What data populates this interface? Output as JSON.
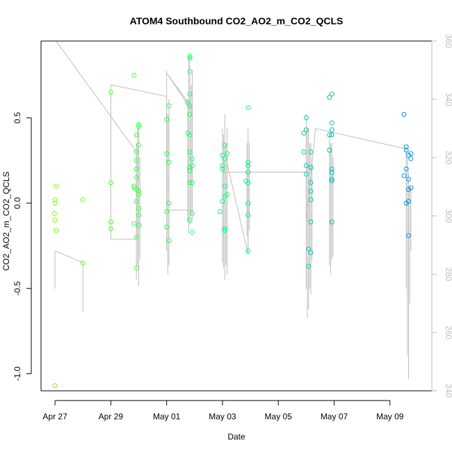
{
  "chart_data": {
    "type": "scatter",
    "title": "ATOM4 Southbound CO2_AO2_m_CO2_QCLS",
    "xlabel": "Date",
    "ylabel": "CO2_AO2_m_CO2_QCLS",
    "xlim": [
      "2018-04-26T12:00",
      "2018-05-10T12:00"
    ],
    "ylim": [
      -1.1,
      0.95
    ],
    "y2lim": [
      240,
      360
    ],
    "x_ticks": [
      {
        "date": "2018-04-27",
        "label": "Apr 27"
      },
      {
        "date": "2018-04-29",
        "label": "Apr 29"
      },
      {
        "date": "2018-05-01",
        "label": "May 01"
      },
      {
        "date": "2018-05-03",
        "label": "May 03"
      },
      {
        "date": "2018-05-05",
        "label": "May 05"
      },
      {
        "date": "2018-05-07",
        "label": "May 07"
      },
      {
        "date": "2018-05-09",
        "label": "May 09"
      }
    ],
    "y_ticks": [
      {
        "value": -1.0,
        "label": "-1.0"
      },
      {
        "value": -0.5,
        "label": "-0.5"
      },
      {
        "value": 0.0,
        "label": "0.0"
      },
      {
        "value": 0.5,
        "label": "0.5"
      }
    ],
    "y2_ticks": [
      {
        "value": 240,
        "label": "240"
      },
      {
        "value": 260,
        "label": "260"
      },
      {
        "value": 280,
        "label": "280"
      },
      {
        "value": 300,
        "label": "300"
      },
      {
        "value": 320,
        "label": "320"
      },
      {
        "value": 340,
        "label": "340"
      },
      {
        "value": 360,
        "label": "360"
      }
    ],
    "grid": false,
    "legend": "none",
    "point_color_start": "#80ff00",
    "point_color_mid": "#00ff80",
    "point_color_end": "#0080ff",
    "line_color": "#bdbdbd",
    "points": [
      [
        "2018-04-27T00:00",
        0.02
      ],
      [
        "2018-04-27T00:00",
        0.0
      ],
      [
        "2018-04-27T01:00",
        0.1
      ],
      [
        "2018-04-26T23:30",
        -0.06
      ],
      [
        "2018-04-27T00:00",
        -0.1
      ],
      [
        "2018-04-27T01:00",
        -0.16
      ],
      [
        "2018-04-27T00:00",
        -1.07
      ],
      [
        "2018-04-28T00:00",
        0.02
      ],
      [
        "2018-04-28T00:00",
        -0.35
      ],
      [
        "2018-04-29T00:00",
        0.65
      ],
      [
        "2018-04-29T00:00",
        0.12
      ],
      [
        "2018-04-29T00:00",
        -0.11
      ],
      [
        "2018-04-29T00:00",
        -0.15
      ],
      [
        "2018-04-29T20:00",
        0.75
      ],
      [
        "2018-04-29T22:00",
        0.4
      ],
      [
        "2018-04-30T00:00",
        0.46
      ],
      [
        "2018-04-30T00:00",
        0.45
      ],
      [
        "2018-04-30T00:00",
        0.34
      ],
      [
        "2018-04-29T22:00",
        0.3
      ],
      [
        "2018-04-29T22:00",
        0.25
      ],
      [
        "2018-04-29T22:00",
        0.2
      ],
      [
        "2018-04-29T22:00",
        0.15
      ],
      [
        "2018-04-29T20:00",
        0.1
      ],
      [
        "2018-04-29T20:00",
        0.09
      ],
      [
        "2018-04-29T22:00",
        0.08
      ],
      [
        "2018-04-30T00:00",
        0.07
      ],
      [
        "2018-04-30T00:00",
        0.05
      ],
      [
        "2018-04-29T22:00",
        0.01
      ],
      [
        "2018-04-30T00:00",
        -0.03
      ],
      [
        "2018-04-30T00:00",
        -0.07
      ],
      [
        "2018-04-29T20:00",
        -0.12
      ],
      [
        "2018-04-30T00:00",
        -0.13
      ],
      [
        "2018-04-29T22:00",
        -0.2
      ],
      [
        "2018-04-29T22:00",
        -0.38
      ],
      [
        "2018-05-01T00:00",
        0.49
      ],
      [
        "2018-05-01T02:00",
        0.57
      ],
      [
        "2018-05-01T00:00",
        0.29
      ],
      [
        "2018-05-01T02:00",
        0.24
      ],
      [
        "2018-05-01T02:00",
        0.0
      ],
      [
        "2018-05-01T00:00",
        -0.05
      ],
      [
        "2018-05-01T00:00",
        -0.14
      ],
      [
        "2018-05-01T02:00",
        -0.22
      ],
      [
        "2018-05-01T20:00",
        0.86
      ],
      [
        "2018-05-01T20:00",
        0.85
      ],
      [
        "2018-05-01T20:00",
        0.77
      ],
      [
        "2018-05-01T20:00",
        0.64
      ],
      [
        "2018-05-01T18:00",
        0.59
      ],
      [
        "2018-05-01T20:00",
        0.57
      ],
      [
        "2018-05-01T20:00",
        0.52
      ],
      [
        "2018-05-01T18:00",
        0.41
      ],
      [
        "2018-05-01T20:00",
        0.4
      ],
      [
        "2018-05-01T20:00",
        0.3
      ],
      [
        "2018-05-01T22:00",
        0.26
      ],
      [
        "2018-05-01T22:00",
        0.22
      ],
      [
        "2018-05-01T20:00",
        0.21
      ],
      [
        "2018-05-01T20:00",
        0.19
      ],
      [
        "2018-05-01T20:00",
        0.12
      ],
      [
        "2018-05-01T22:00",
        0.12
      ],
      [
        "2018-05-01T22:00",
        -0.06
      ],
      [
        "2018-05-01T20:00",
        -0.1
      ],
      [
        "2018-05-01T22:00",
        -0.17
      ],
      [
        "2018-05-03T02:00",
        0.34
      ],
      [
        "2018-05-03T00:00",
        0.28
      ],
      [
        "2018-05-03T04:00",
        0.29
      ],
      [
        "2018-05-03T02:00",
        0.26
      ],
      [
        "2018-05-03T00:00",
        0.22
      ],
      [
        "2018-05-03T00:00",
        0.2
      ],
      [
        "2018-05-03T02:00",
        0.1
      ],
      [
        "2018-05-03T02:00",
        0.04
      ],
      [
        "2018-05-03T04:00",
        0.05
      ],
      [
        "2018-05-03T00:00",
        0.01
      ],
      [
        "2018-05-02T22:00",
        -0.05
      ],
      [
        "2018-05-03T02:00",
        -0.15
      ],
      [
        "2018-05-03T02:00",
        -0.16
      ],
      [
        "2018-05-03T22:00",
        0.56
      ],
      [
        "2018-05-03T22:00",
        0.24
      ],
      [
        "2018-05-03T22:00",
        0.22
      ],
      [
        "2018-05-03T22:00",
        0.18
      ],
      [
        "2018-05-03T20:00",
        0.13
      ],
      [
        "2018-05-03T22:00",
        0.12
      ],
      [
        "2018-05-03T22:00",
        0.0
      ],
      [
        "2018-05-03T22:00",
        -0.07
      ],
      [
        "2018-05-03T22:00",
        -0.28
      ],
      [
        "2018-05-06T00:00",
        0.5
      ],
      [
        "2018-05-05T22:00",
        0.41
      ],
      [
        "2018-05-06T00:00",
        0.43
      ],
      [
        "2018-05-05T22:00",
        0.3
      ],
      [
        "2018-05-06T04:00",
        0.3
      ],
      [
        "2018-05-06T00:00",
        0.22
      ],
      [
        "2018-05-06T04:00",
        0.21
      ],
      [
        "2018-05-06T00:00",
        0.17
      ],
      [
        "2018-05-06T04:00",
        0.12
      ],
      [
        "2018-05-06T04:00",
        0.07
      ],
      [
        "2018-05-06T04:00",
        0.02
      ],
      [
        "2018-05-06T04:00",
        -0.11
      ],
      [
        "2018-05-06T02:00",
        -0.27
      ],
      [
        "2018-05-06T04:00",
        -0.29
      ],
      [
        "2018-05-06T02:00",
        -0.37
      ],
      [
        "2018-05-06T20:00",
        0.62
      ],
      [
        "2018-05-06T22:00",
        0.64
      ],
      [
        "2018-05-06T22:00",
        0.47
      ],
      [
        "2018-05-06T22:00",
        0.43
      ],
      [
        "2018-05-06T20:00",
        0.4
      ],
      [
        "2018-05-06T22:00",
        0.4
      ],
      [
        "2018-05-06T20:00",
        0.31
      ],
      [
        "2018-05-06T22:00",
        0.2
      ],
      [
        "2018-05-06T22:00",
        0.18
      ],
      [
        "2018-05-06T22:00",
        0.14
      ],
      [
        "2018-05-06T22:00",
        0.13
      ],
      [
        "2018-05-06T22:00",
        -0.11
      ],
      [
        "2018-05-09T12:00",
        0.52
      ],
      [
        "2018-05-09T14:00",
        0.33
      ],
      [
        "2018-05-09T14:00",
        0.31
      ],
      [
        "2018-05-09T16:00",
        0.28
      ],
      [
        "2018-05-09T18:00",
        0.29
      ],
      [
        "2018-05-09T18:00",
        0.26
      ],
      [
        "2018-05-09T14:00",
        0.2
      ],
      [
        "2018-05-09T16:00",
        0.14
      ],
      [
        "2018-05-09T12:00",
        0.16
      ],
      [
        "2018-05-09T18:00",
        0.09
      ],
      [
        "2018-05-09T16:00",
        0.08
      ],
      [
        "2018-05-09T16:00",
        0.01
      ],
      [
        "2018-05-09T14:00",
        0.0
      ],
      [
        "2018-05-09T16:00",
        -0.19
      ]
    ],
    "line_series": [
      [
        [
          "2018-04-27T01:00",
          360
        ],
        [
          "2018-04-29T22:00",
          322
        ],
        [
          "2018-04-29T22:00",
          292
        ],
        [
          "2018-04-29T00:00",
          292
        ],
        [
          "2018-04-29T00:00",
          345
        ],
        [
          "2018-05-01T00:00",
          341
        ],
        [
          "2018-05-01T00:00",
          302
        ],
        [
          "2018-05-01T22:00",
          302
        ],
        [
          "2018-05-01T22:00",
          337
        ],
        [
          "2018-05-01T00:00",
          349
        ],
        [
          "2018-05-01T22:00",
          336
        ]
      ],
      [
        [
          "2018-05-03T00:00",
          315
        ],
        [
          "2018-05-03T22:00",
          315
        ],
        [
          "2018-05-06T00:00",
          315
        ],
        [
          "2018-05-06T00:00",
          298
        ],
        [
          "2018-05-06T08:00",
          330
        ],
        [
          "2018-05-09T14:00",
          323
        ]
      ],
      [
        [
          "2018-04-27T00:00",
          275
        ],
        [
          "2018-04-27T00:00",
          288
        ],
        [
          "2018-04-28T00:00",
          284
        ],
        [
          "2018-04-28T00:00",
          267
        ]
      ],
      [
        [
          "2018-05-03T04:00",
          318
        ],
        [
          "2018-05-03T22:00",
          287
        ],
        [
          "2018-05-03T22:00",
          318
        ]
      ]
    ],
    "line_spikes": [
      [
        "2018-04-29T22:00",
        278,
        325
      ],
      [
        "2018-04-29T23:00",
        283,
        330
      ],
      [
        "2018-04-30T00:00",
        276,
        332
      ],
      [
        "2018-04-30T01:00",
        285,
        320
      ],
      [
        "2018-05-01T00:00",
        288,
        350
      ],
      [
        "2018-05-01T01:00",
        280,
        335
      ],
      [
        "2018-05-01T02:00",
        283,
        340
      ],
      [
        "2018-05-01T18:00",
        298,
        340
      ],
      [
        "2018-05-01T19:00",
        294,
        355
      ],
      [
        "2018-05-01T20:00",
        297,
        356
      ],
      [
        "2018-05-01T21:00",
        300,
        345
      ],
      [
        "2018-05-01T22:00",
        299,
        350
      ],
      [
        "2018-05-03T00:00",
        284,
        330
      ],
      [
        "2018-05-03T01:00",
        282,
        328
      ],
      [
        "2018-05-03T02:00",
        278,
        335
      ],
      [
        "2018-05-03T03:00",
        283,
        325
      ],
      [
        "2018-05-03T04:00",
        280,
        330
      ],
      [
        "2018-05-03T21:00",
        293,
        325
      ],
      [
        "2018-05-03T22:00",
        287,
        330
      ],
      [
        "2018-05-03T23:00",
        295,
        325
      ],
      [
        "2018-05-06T00:00",
        275,
        335
      ],
      [
        "2018-05-06T01:00",
        265,
        330
      ],
      [
        "2018-05-06T02:00",
        268,
        330
      ],
      [
        "2018-05-06T03:00",
        275,
        325
      ],
      [
        "2018-05-06T04:00",
        273,
        325
      ],
      [
        "2018-05-06T05:00",
        285,
        318
      ],
      [
        "2018-05-06T20:00",
        283,
        328
      ],
      [
        "2018-05-06T21:00",
        280,
        325
      ],
      [
        "2018-05-06T22:00",
        285,
        325
      ],
      [
        "2018-05-06T23:00",
        286,
        320
      ],
      [
        "2018-05-09T14:00",
        275,
        323
      ],
      [
        "2018-05-09T15:00",
        252,
        320
      ],
      [
        "2018-05-09T16:00",
        244,
        315
      ],
      [
        "2018-05-09T17:00",
        270,
        310
      ],
      [
        "2018-05-09T18:00",
        288,
        310
      ]
    ]
  }
}
